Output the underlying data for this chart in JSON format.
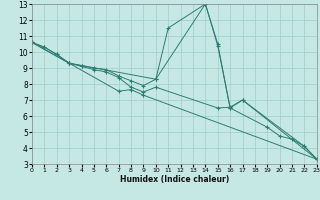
{
  "title": "",
  "xlabel": "Humidex (Indice chaleur)",
  "xlim": [
    0,
    23
  ],
  "ylim": [
    3,
    13
  ],
  "xticks": [
    0,
    1,
    2,
    3,
    4,
    5,
    6,
    7,
    8,
    9,
    10,
    11,
    12,
    13,
    14,
    15,
    16,
    17,
    18,
    19,
    20,
    21,
    22,
    23
  ],
  "yticks": [
    3,
    4,
    5,
    6,
    7,
    8,
    9,
    10,
    11,
    12,
    13
  ],
  "background_color": "#c5e8e5",
  "grid_color": "#a0cdc8",
  "line_color": "#2e7d72",
  "lines": [
    {
      "x": [
        0,
        1,
        2,
        3,
        10,
        11,
        14,
        15,
        16,
        19,
        20,
        21,
        22,
        23
      ],
      "y": [
        10.6,
        10.3,
        9.85,
        9.3,
        8.3,
        11.5,
        13.0,
        10.5,
        6.5,
        5.3,
        4.75,
        4.55,
        4.1,
        3.3
      ]
    },
    {
      "x": [
        0,
        1,
        2,
        3,
        4,
        5,
        6,
        7,
        8,
        9,
        10,
        14,
        15,
        16,
        17,
        22,
        23
      ],
      "y": [
        10.6,
        10.3,
        9.85,
        9.3,
        9.15,
        9.0,
        8.9,
        8.5,
        8.2,
        7.9,
        8.3,
        13.0,
        10.4,
        6.5,
        7.0,
        4.1,
        3.3
      ]
    },
    {
      "x": [
        0,
        3,
        4,
        5,
        6,
        7,
        8,
        9,
        10,
        15,
        16,
        17,
        23
      ],
      "y": [
        10.6,
        9.3,
        9.1,
        8.9,
        8.75,
        8.4,
        7.8,
        7.5,
        7.8,
        6.5,
        6.55,
        7.0,
        3.3
      ]
    },
    {
      "x": [
        0,
        3,
        7,
        8,
        9,
        23
      ],
      "y": [
        10.6,
        9.3,
        7.55,
        7.65,
        7.3,
        3.3
      ]
    }
  ]
}
